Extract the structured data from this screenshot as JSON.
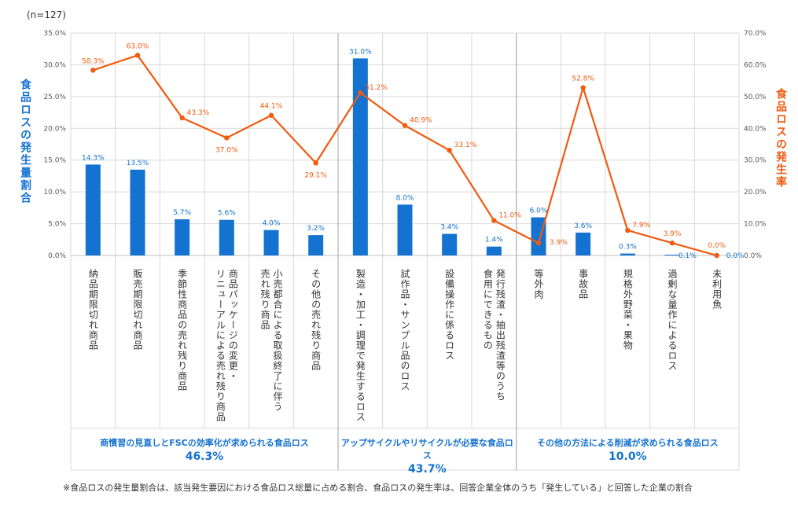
{
  "sample_note": "(n=127)",
  "footnote": "※食品ロスの発生量割合は、該当発生要因における食品ロス総量に占める割合、食品ロスの発生率は、回答企業全体のうち「発生している」と回答した企業の割合",
  "colors": {
    "bar": "#1472D0",
    "line": "#F25A0F",
    "axis_left": "#1472D0",
    "axis_right": "#F25A0F"
  },
  "chart_data": {
    "type": "bar+line",
    "title": "",
    "ylabel_left": "食品ロスの発生量割合",
    "ylabel_right": "食品ロスの発生率",
    "ylim_left": [
      0,
      35
    ],
    "ylim_right": [
      0,
      70
    ],
    "yticks_left": [
      "0.0%",
      "5.0%",
      "10.0%",
      "15.0%",
      "20.0%",
      "25.0%",
      "30.0%",
      "35.0%"
    ],
    "yticks_right": [
      "0.0%",
      "10.0%",
      "20.0%",
      "30.0%",
      "40.0%",
      "50.0%",
      "60.0%",
      "70.0%"
    ],
    "grid": true,
    "categories": [
      [
        "納品期限切れ商品"
      ],
      [
        "販売期限切れ商品"
      ],
      [
        "季節性商品の売れ残り商品"
      ],
      [
        "商品パッケージの変更・",
        "リニューアルによる売れ残り商品"
      ],
      [
        "小売都合による取扱終了に伴う",
        "売れ残り商品"
      ],
      [
        "その他の売れ残り商品"
      ],
      [
        "製造・加工・調理で発生するロス"
      ],
      [
        "試作品・サンプル品のロス"
      ],
      [
        "設備操作に係るロス"
      ],
      [
        "発行残渣・抽出残渣等のうち",
        "食用にできるもの"
      ],
      [
        "等外肉"
      ],
      [
        "事故品"
      ],
      [
        "規格外野菜・果物"
      ],
      [
        "過剰な量作によるロス"
      ],
      [
        "未利用魚"
      ]
    ],
    "series": [
      {
        "name": "食品ロスの発生量割合",
        "type": "bar",
        "axis": "left",
        "values": [
          14.3,
          13.5,
          5.7,
          5.6,
          4.0,
          3.2,
          31.0,
          8.0,
          3.4,
          1.4,
          6.0,
          3.6,
          0.3,
          0.1,
          0.0
        ],
        "labels": [
          "14.3%",
          "13.5%",
          "5.7%",
          "5.6%",
          "4.0%",
          "3.2%",
          "31.0%",
          "8.0%",
          "3.4%",
          "1.4%",
          "6.0%",
          "3.6%",
          "0.3%",
          "0.1%",
          "0.0%"
        ]
      },
      {
        "name": "食品ロスの発生率",
        "type": "line",
        "axis": "right",
        "values": [
          58.3,
          63.0,
          43.3,
          37.0,
          44.1,
          29.1,
          51.2,
          40.9,
          33.1,
          11.0,
          3.9,
          52.8,
          7.9,
          3.9,
          0.0
        ],
        "labels": [
          "58.3%",
          "63.0%",
          "43.3%",
          "37.0%",
          "44.1%",
          "29.1%",
          "51.2%",
          "40.9%",
          "33.1%",
          "11.0%",
          "3.9%",
          "52.8%",
          "7.9%",
          "3.9%",
          "0.0%"
        ]
      }
    ],
    "groups": [
      {
        "label": "商慣習の見直しとFSCの効率化が求められる食品ロス",
        "percent": "46.3%",
        "from": 0,
        "to": 5
      },
      {
        "label": "アップサイクルやリサイクルが必要な食品ロス",
        "percent": "43.7%",
        "from": 6,
        "to": 9
      },
      {
        "label": "その他の方法による削減が求められる食品ロス",
        "percent": "10.0%",
        "from": 10,
        "to": 14
      }
    ]
  }
}
